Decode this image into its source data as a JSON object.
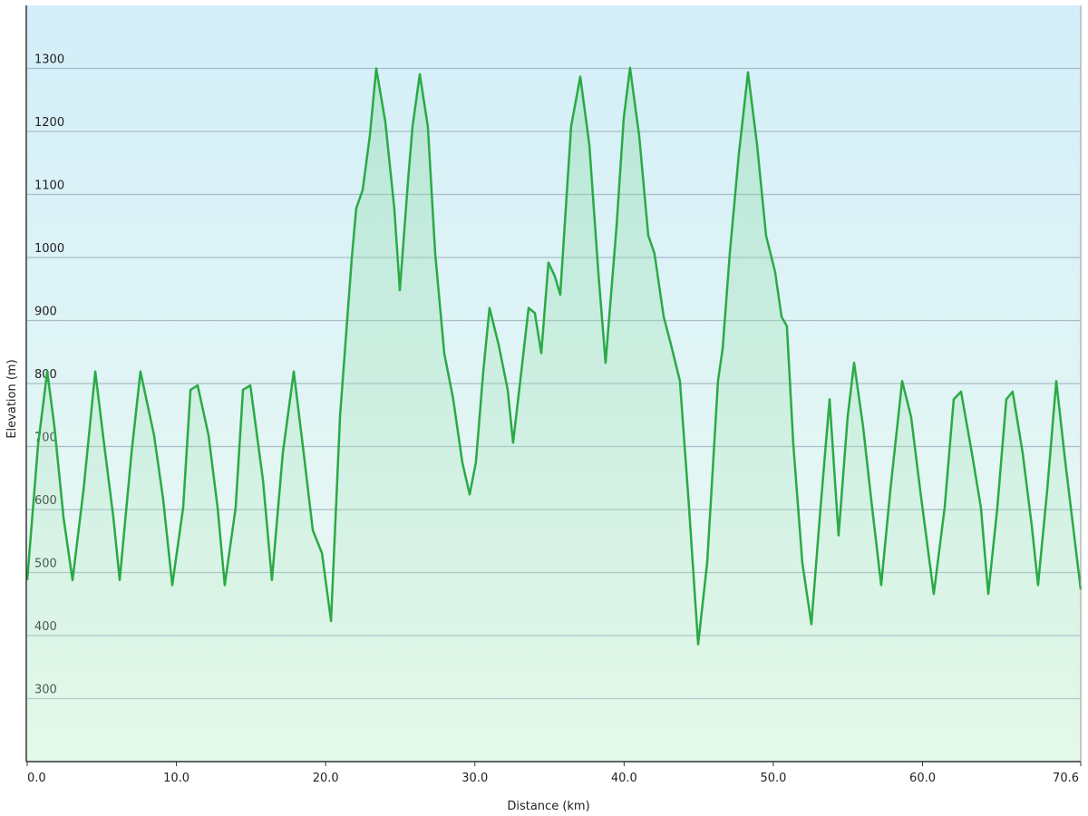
{
  "chart_data": {
    "type": "area",
    "xlabel": "Distance  (km)",
    "ylabel": "Elevation (m)",
    "color": "#2aaa45",
    "grid": true,
    "xlim": [
      0,
      70.6
    ],
    "ylim": [
      200,
      1400
    ],
    "xticks": [
      {
        "value": 0,
        "label": "0.0"
      },
      {
        "value": 10,
        "label": "10.0"
      },
      {
        "value": 20,
        "label": "20.0"
      },
      {
        "value": 30,
        "label": "30.0"
      },
      {
        "value": 40,
        "label": "40.0"
      },
      {
        "value": 50,
        "label": "50.0"
      },
      {
        "value": 60,
        "label": "60.0"
      },
      {
        "value": 70.6,
        "label": "70.6"
      }
    ],
    "yticks": [
      300,
      400,
      500,
      600,
      700,
      800,
      900,
      1000,
      1100,
      1200,
      1300
    ],
    "x": [
      0,
      0.73,
      1.34,
      1.82,
      2.43,
      3.04,
      3.77,
      4.56,
      5.16,
      5.77,
      6.2,
      6.99,
      7.59,
      8.5,
      9.11,
      9.72,
      10.45,
      10.94,
      11.42,
      12.15,
      12.76,
      13.24,
      13.97,
      14.46,
      14.95,
      15.8,
      16.4,
      17.13,
      17.86,
      18.53,
      19.14,
      19.75,
      20.36,
      20.96,
      21.75,
      22.05,
      22.48,
      22.96,
      23.39,
      24,
      24.6,
      24.97,
      25.52,
      25.82,
      26.31,
      26.85,
      27.34,
      27.95,
      28.55,
      29.16,
      29.65,
      30.07,
      30.56,
      30.98,
      31.59,
      32.2,
      32.56,
      33.11,
      33.6,
      34.02,
      34.45,
      34.93,
      35.36,
      35.72,
      36.45,
      37.06,
      37.67,
      38.27,
      38.76,
      39.49,
      39.98,
      40.4,
      41.01,
      41.62,
      42.04,
      42.65,
      43.14,
      43.74,
      44.35,
      44.96,
      45.57,
      46.29,
      46.6,
      47.08,
      47.69,
      48.3,
      48.91,
      49.51,
      50.12,
      50.55,
      50.91,
      51.34,
      51.94,
      52.55,
      53.16,
      53.77,
      54.37,
      54.98,
      55.41,
      56.01,
      56.62,
      57.23,
      57.84,
      58.63,
      59.23,
      59.84,
      60.75,
      61.48,
      62.09,
      62.58,
      63.31,
      63.91,
      64.4,
      65.01,
      65.61,
      66.04,
      66.71,
      67.32,
      67.74,
      68.35,
      68.96,
      69.57,
      70.6
    ],
    "values": [
      488,
      703,
      819,
      732,
      588,
      488,
      631,
      819,
      703,
      588,
      488,
      689,
      819,
      718,
      617,
      480,
      603,
      790,
      797,
      718,
      603,
      480,
      603,
      790,
      797,
      646,
      488,
      689,
      819,
      689,
      567,
      531,
      423,
      747,
      999,
      1078,
      1107,
      1193,
      1300,
      1215,
      1078,
      948,
      1121,
      1208,
      1291,
      1208,
      1006,
      848,
      775,
      675,
      624,
      675,
      819,
      920,
      862,
      790,
      706,
      819,
      920,
      912,
      848,
      992,
      970,
      941,
      1208,
      1287,
      1179,
      977,
      833,
      1049,
      1222,
      1301,
      1193,
      1035,
      1006,
      906,
      862,
      804,
      603,
      386,
      516,
      804,
      855,
      1006,
      1164,
      1294,
      1179,
      1035,
      977,
      906,
      891,
      703,
      516,
      418,
      603,
      775,
      559,
      747,
      833,
      732,
      603,
      480,
      631,
      804,
      747,
      631,
      466,
      603,
      775,
      787,
      689,
      603,
      466,
      603,
      775,
      787,
      689,
      574,
      480,
      631,
      804,
      675,
      473
    ]
  }
}
